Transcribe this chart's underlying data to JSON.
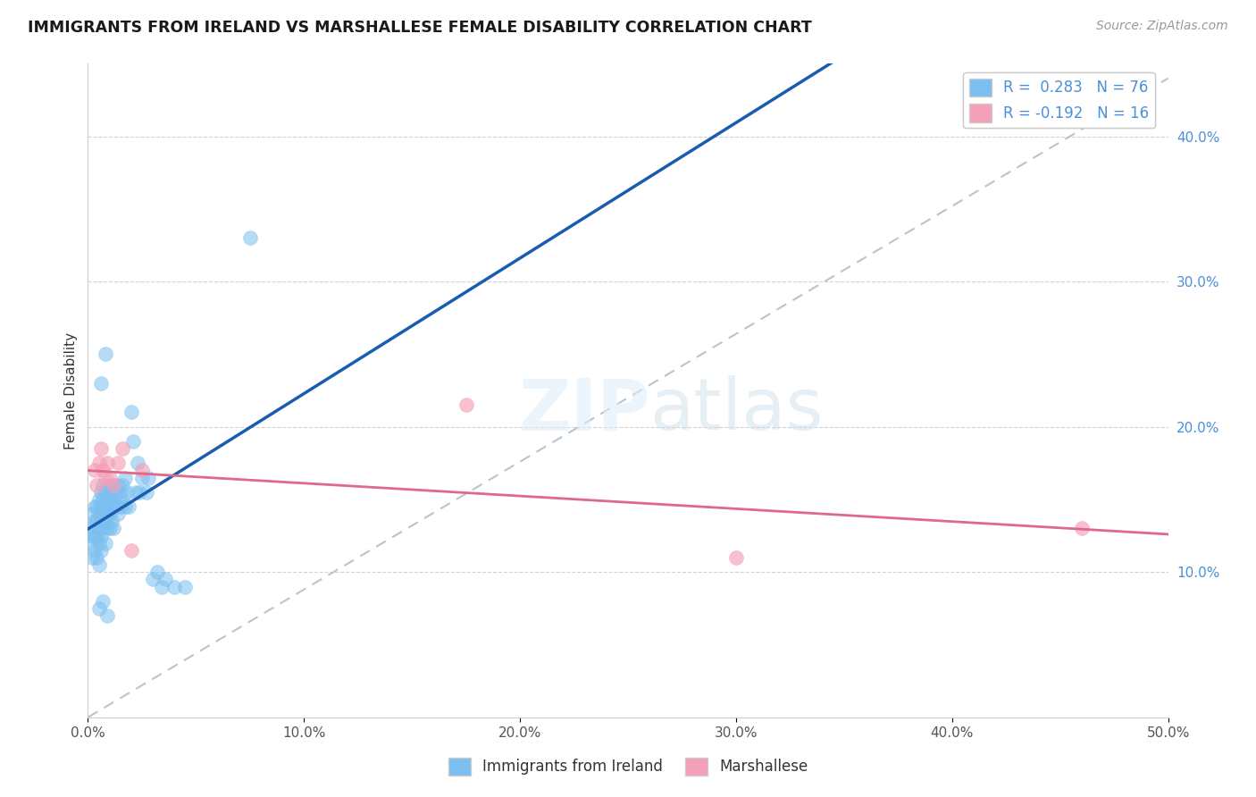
{
  "title": "IMMIGRANTS FROM IRELAND VS MARSHALLESE FEMALE DISABILITY CORRELATION CHART",
  "source": "Source: ZipAtlas.com",
  "ylabel": "Female Disability",
  "xlim": [
    0.0,
    0.5
  ],
  "ylim": [
    0.0,
    0.45
  ],
  "xtick_vals": [
    0.0,
    0.1,
    0.2,
    0.3,
    0.4,
    0.5
  ],
  "ytick_vals": [
    0.1,
    0.2,
    0.3,
    0.4
  ],
  "color_blue": "#7bbff0",
  "color_pink": "#f4a0b8",
  "color_blue_line": "#1a5cb0",
  "color_pink_line": "#e06888",
  "color_dashed_line": "#b8c4d0",
  "ireland_x": [
    0.001,
    0.001,
    0.002,
    0.002,
    0.002,
    0.003,
    0.003,
    0.003,
    0.003,
    0.004,
    0.004,
    0.004,
    0.004,
    0.005,
    0.005,
    0.005,
    0.005,
    0.005,
    0.006,
    0.006,
    0.006,
    0.006,
    0.006,
    0.007,
    0.007,
    0.007,
    0.007,
    0.008,
    0.008,
    0.008,
    0.008,
    0.009,
    0.009,
    0.009,
    0.01,
    0.01,
    0.01,
    0.01,
    0.011,
    0.011,
    0.011,
    0.012,
    0.012,
    0.012,
    0.013,
    0.013,
    0.014,
    0.014,
    0.015,
    0.015,
    0.016,
    0.016,
    0.017,
    0.017,
    0.018,
    0.019,
    0.02,
    0.021,
    0.022,
    0.023,
    0.024,
    0.025,
    0.027,
    0.028,
    0.03,
    0.032,
    0.034,
    0.036,
    0.04,
    0.045,
    0.075,
    0.008,
    0.006,
    0.005,
    0.007,
    0.009
  ],
  "ireland_y": [
    0.13,
    0.12,
    0.14,
    0.125,
    0.11,
    0.145,
    0.135,
    0.125,
    0.115,
    0.145,
    0.135,
    0.125,
    0.11,
    0.15,
    0.14,
    0.13,
    0.12,
    0.105,
    0.155,
    0.145,
    0.135,
    0.125,
    0.115,
    0.16,
    0.15,
    0.14,
    0.13,
    0.155,
    0.145,
    0.135,
    0.12,
    0.15,
    0.14,
    0.13,
    0.16,
    0.15,
    0.14,
    0.13,
    0.155,
    0.145,
    0.135,
    0.16,
    0.15,
    0.13,
    0.155,
    0.145,
    0.16,
    0.14,
    0.155,
    0.145,
    0.16,
    0.15,
    0.165,
    0.145,
    0.155,
    0.145,
    0.21,
    0.19,
    0.155,
    0.175,
    0.155,
    0.165,
    0.155,
    0.165,
    0.095,
    0.1,
    0.09,
    0.095,
    0.09,
    0.09,
    0.33,
    0.25,
    0.23,
    0.075,
    0.08,
    0.07
  ],
  "marshallese_x": [
    0.003,
    0.004,
    0.005,
    0.006,
    0.007,
    0.008,
    0.009,
    0.01,
    0.012,
    0.014,
    0.016,
    0.02,
    0.025,
    0.3,
    0.46,
    0.175
  ],
  "marshallese_y": [
    0.17,
    0.16,
    0.175,
    0.185,
    0.17,
    0.165,
    0.175,
    0.165,
    0.16,
    0.175,
    0.185,
    0.115,
    0.17,
    0.11,
    0.13,
    0.215
  ]
}
